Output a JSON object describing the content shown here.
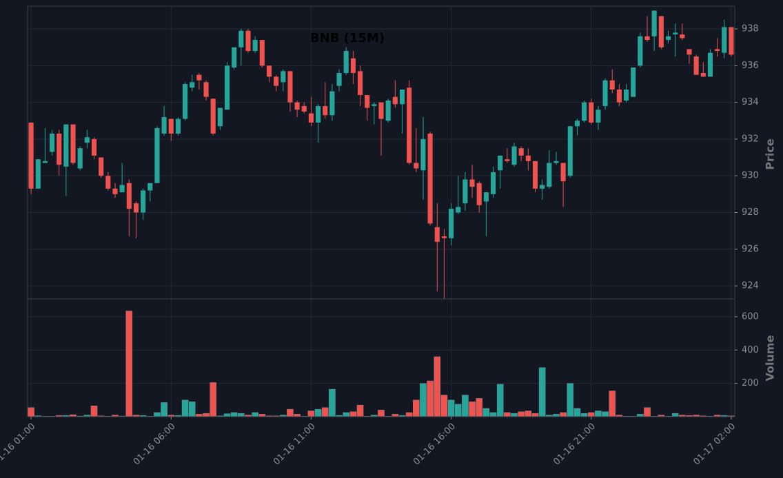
{
  "chart_data": {
    "type": "candlestick",
    "title": "BNB (15M)",
    "categories": [
      "01-16 01:00",
      null,
      null,
      null,
      null,
      null,
      null,
      null,
      null,
      null,
      null,
      null,
      null,
      null,
      null,
      null,
      null,
      null,
      null,
      null,
      "01-16 06:00",
      null,
      null,
      null,
      null,
      null,
      null,
      null,
      null,
      null,
      null,
      null,
      null,
      null,
      null,
      null,
      null,
      null,
      null,
      null,
      "01-16 11:00",
      null,
      null,
      null,
      null,
      null,
      null,
      null,
      null,
      null,
      null,
      null,
      null,
      null,
      null,
      null,
      null,
      null,
      null,
      null,
      "01-16 16:00",
      null,
      null,
      null,
      null,
      null,
      null,
      null,
      null,
      null,
      null,
      null,
      null,
      null,
      null,
      null,
      null,
      null,
      null,
      null,
      "01-16 21:00",
      null,
      null,
      null,
      null,
      null,
      null,
      null,
      null,
      null,
      null,
      null,
      null,
      null,
      null,
      null,
      null,
      null,
      null,
      null,
      "01-17 02:00"
    ],
    "open": [
      932.9,
      929.3,
      930.7,
      931.3,
      932.3,
      930.5,
      932.8,
      930.4,
      931.8,
      932.0,
      931.0,
      930.0,
      929.3,
      929.1,
      929.6,
      928.5,
      928.0,
      929.2,
      929.6,
      932.3,
      933.1,
      932.3,
      933.1,
      934.8,
      935.5,
      935.1,
      934.2,
      932.7,
      933.6,
      935.9,
      937.0,
      937.9,
      936.8,
      937.4,
      936.0,
      935.4,
      935.1,
      935.7,
      934.0,
      933.8,
      933.4,
      932.9,
      933.8,
      933.3,
      934.9,
      935.6,
      936.4,
      935.7,
      934.4,
      933.8,
      934.0,
      933.0,
      934.3,
      933.9,
      934.8,
      930.7,
      930.3,
      932.3,
      927.2,
      926.7,
      926.6,
      928.0,
      928.5,
      929.8,
      929.6,
      928.6,
      929.0,
      930.3,
      930.9,
      930.6,
      931.5,
      931.1,
      930.8,
      929.3,
      929.4,
      930.7,
      930.7,
      930.0,
      932.7,
      933.0,
      934.0,
      932.9,
      933.8,
      935.2,
      934.7,
      934.1,
      934.3,
      936.0,
      937.6,
      937.6,
      938.7,
      937.4,
      937.7,
      937.7,
      936.9,
      936.5,
      935.6,
      935.4,
      936.9,
      936.7,
      938.1
    ],
    "high": [
      932.9,
      930.9,
      932.6,
      932.5,
      932.5,
      932.8,
      932.8,
      931.6,
      932.5,
      932.1,
      931.0,
      930.2,
      929.6,
      930.7,
      929.8,
      928.6,
      929.3,
      929.6,
      932.7,
      933.8,
      933.1,
      933.2,
      935.1,
      935.5,
      935.6,
      935.2,
      934.2,
      933.7,
      936.2,
      937.0,
      938.0,
      938.0,
      937.6,
      937.4,
      936.0,
      935.5,
      935.8,
      935.7,
      934.1,
      934.0,
      934.3,
      933.9,
      935.1,
      935.0,
      935.8,
      937.0,
      936.8,
      936.0,
      934.4,
      934.0,
      934.0,
      934.2,
      935.2,
      934.7,
      935.2,
      932.6,
      933.2,
      932.4,
      928.5,
      927.1,
      928.5,
      930.0,
      930.2,
      930.6,
      929.7,
      929.1,
      930.5,
      931.1,
      931.5,
      931.8,
      931.6,
      931.5,
      930.8,
      929.8,
      931.4,
      931.3,
      930.7,
      932.7,
      933.1,
      934.1,
      934.2,
      933.8,
      935.3,
      935.8,
      935.0,
      935.0,
      935.9,
      937.8,
      938.7,
      939.0,
      938.7,
      937.9,
      938.3,
      938.3,
      936.9,
      936.6,
      936.2,
      936.9,
      937.5,
      938.5,
      938.1
    ],
    "low": [
      929.0,
      929.3,
      930.7,
      931.1,
      930.0,
      928.9,
      930.6,
      930.3,
      931.5,
      930.9,
      929.9,
      929.2,
      928.8,
      929.1,
      926.7,
      926.6,
      927.6,
      928.6,
      929.6,
      932.2,
      931.9,
      932.2,
      933.0,
      934.6,
      934.7,
      934.1,
      932.2,
      932.5,
      933.6,
      935.8,
      936.0,
      936.7,
      936.7,
      935.9,
      935.1,
      934.6,
      934.6,
      933.5,
      933.2,
      933.4,
      932.7,
      931.8,
      933.1,
      933.0,
      934.6,
      935.5,
      935.0,
      933.8,
      933.0,
      932.8,
      931.1,
      932.9,
      933.7,
      932.3,
      930.6,
      930.2,
      928.7,
      927.3,
      923.7,
      923.3,
      926.2,
      927.9,
      928.1,
      928.8,
      928.0,
      926.7,
      928.8,
      929.3,
      930.7,
      930.5,
      930.8,
      930.3,
      929.1,
      928.7,
      929.3,
      930.6,
      928.3,
      929.9,
      932.2,
      932.9,
      932.8,
      932.5,
      933.6,
      934.5,
      933.8,
      934.0,
      934.3,
      935.9,
      937.3,
      936.8,
      936.9,
      937.2,
      936.5,
      937.4,
      936.1,
      935.5,
      935.4,
      935.4,
      936.5,
      936.4,
      936.5
    ],
    "close": [
      929.3,
      930.9,
      930.8,
      932.3,
      930.6,
      932.8,
      930.7,
      931.5,
      932.1,
      931.1,
      930.0,
      929.3,
      929.0,
      929.5,
      928.2,
      928.0,
      929.2,
      929.6,
      932.6,
      933.2,
      932.3,
      933.1,
      935.0,
      935.1,
      935.2,
      934.3,
      932.3,
      933.7,
      936.0,
      937.0,
      937.9,
      936.8,
      937.4,
      936.0,
      935.4,
      934.9,
      935.7,
      934.0,
      933.6,
      933.5,
      932.9,
      933.8,
      933.3,
      934.6,
      935.6,
      936.8,
      935.6,
      934.4,
      933.7,
      933.9,
      933.1,
      934.1,
      933.9,
      934.7,
      930.7,
      930.4,
      932.0,
      927.4,
      926.4,
      926.6,
      928.2,
      928.3,
      929.8,
      929.4,
      928.4,
      929.1,
      930.2,
      931.1,
      930.8,
      931.6,
      931.1,
      930.8,
      929.3,
      929.5,
      930.7,
      930.8,
      929.7,
      932.7,
      933.0,
      934.0,
      932.9,
      933.6,
      935.2,
      934.7,
      934.0,
      934.7,
      935.9,
      937.6,
      937.4,
      939.0,
      937.0,
      937.6,
      937.8,
      937.5,
      936.6,
      935.5,
      935.4,
      936.7,
      936.8,
      938.1,
      936.6
    ],
    "volume": [
      55,
      6,
      3,
      3,
      8,
      8,
      12,
      4,
      10,
      65,
      5,
      3,
      10,
      4,
      635,
      10,
      8,
      3,
      25,
      85,
      10,
      8,
      100,
      90,
      15,
      20,
      205,
      5,
      18,
      25,
      20,
      10,
      25,
      15,
      5,
      5,
      10,
      45,
      15,
      3,
      35,
      45,
      55,
      165,
      8,
      25,
      30,
      70,
      3,
      10,
      40,
      3,
      15,
      8,
      25,
      100,
      200,
      215,
      360,
      130,
      100,
      75,
      130,
      90,
      110,
      50,
      25,
      195,
      25,
      20,
      30,
      35,
      20,
      295,
      10,
      15,
      25,
      200,
      50,
      20,
      25,
      35,
      30,
      155,
      10,
      3,
      3,
      15,
      55,
      3,
      10,
      3,
      20,
      10,
      8,
      10,
      5,
      3,
      10,
      8,
      5
    ],
    "ylim": [
      923.29,
      939.24
    ],
    "yticks": [
      924,
      926,
      928,
      930,
      932,
      934,
      936,
      938
    ],
    "volume_ylim": [
      0,
      707
    ],
    "volume_yticks": [
      200,
      400,
      600
    ],
    "ylabel": "Price",
    "volume_label": "Volume",
    "up_color": "#26a69a",
    "down_color": "#ef5350",
    "grid": true
  }
}
